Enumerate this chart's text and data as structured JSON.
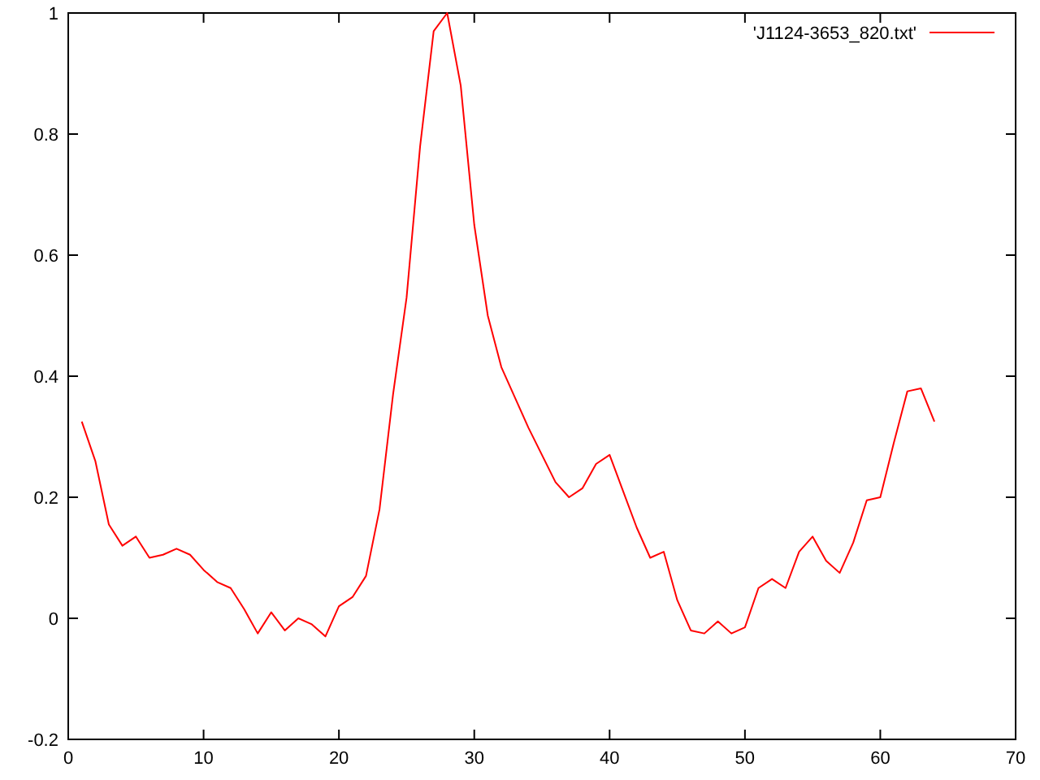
{
  "chart_data": {
    "type": "line",
    "legend": "top right",
    "grid": false,
    "xlim": [
      0,
      70
    ],
    "xticks": [
      0,
      10,
      20,
      30,
      40,
      50,
      60,
      70
    ],
    "ylim": [
      -0.2,
      1
    ],
    "yticks": [
      -0.2,
      0,
      0.2,
      0.4,
      0.6,
      0.8,
      1
    ],
    "x": [
      1,
      2,
      3,
      4,
      5,
      6,
      7,
      8,
      9,
      10,
      11,
      12,
      13,
      14,
      15,
      16,
      17,
      18,
      19,
      20,
      21,
      22,
      23,
      24,
      25,
      26,
      27,
      28,
      29,
      30,
      31,
      32,
      33,
      34,
      35,
      36,
      37,
      38,
      39,
      40,
      41,
      42,
      43,
      44,
      45,
      46,
      47,
      48,
      49,
      50,
      51,
      52,
      53,
      54,
      55,
      56,
      57,
      58,
      59,
      60,
      61,
      62,
      63,
      64
    ],
    "series": [
      {
        "name": "'J1124-3653_820.txt'",
        "color": "#ff0000",
        "values": [
          0.325,
          0.26,
          0.155,
          0.12,
          0.135,
          0.1,
          0.105,
          0.115,
          0.105,
          0.08,
          0.06,
          0.05,
          0.015,
          -0.025,
          0.01,
          -0.02,
          0,
          -0.01,
          -0.03,
          0.02,
          0.035,
          0.07,
          0.18,
          0.37,
          0.53,
          0.78,
          0.97,
          1.0,
          0.88,
          0.65,
          0.5,
          0.415,
          0.365,
          0.315,
          0.27,
          0.225,
          0.2,
          0.215,
          0.255,
          0.27,
          0.21,
          0.15,
          0.1,
          0.11,
          0.03,
          -0.02,
          -0.025,
          -0.005,
          -0.025,
          -0.015,
          0.05,
          0.065,
          0.05,
          0.11,
          0.135,
          0.095,
          0.075,
          0.125,
          0.195,
          0.2,
          0.29,
          0.375,
          0.38,
          0.325
        ]
      }
    ]
  }
}
